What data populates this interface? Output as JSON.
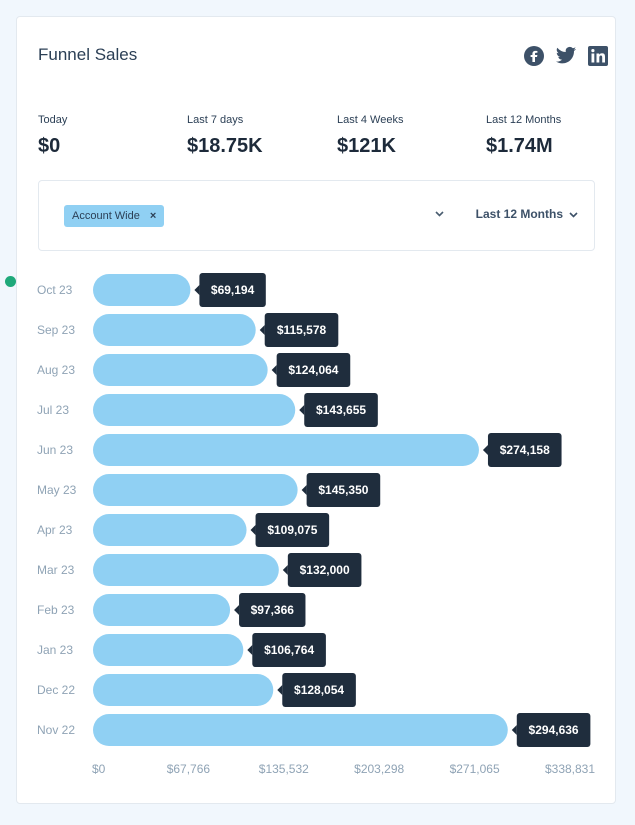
{
  "widget": {
    "title": "Funnel Sales",
    "social": [
      {
        "icon": "facebook-icon"
      },
      {
        "icon": "twitter-icon"
      },
      {
        "icon": "linkedin-icon"
      }
    ],
    "stats": [
      {
        "label": "Today",
        "value": "$0"
      },
      {
        "label": "Last 7 days",
        "value": "$18.75K"
      },
      {
        "label": "Last 4 Weeks",
        "value": "$121K"
      },
      {
        "label": "Last 12 Months",
        "value": "$1.74M"
      }
    ],
    "filter": {
      "chip_label": "Account Wide",
      "chip_remove": "×",
      "range_label": "Last 12 Months"
    }
  },
  "colors": {
    "bar": "#90d0f3",
    "tooltip": "#1f2d3d",
    "accent_dot": "#1fa97a"
  },
  "chart_data": {
    "type": "bar",
    "orientation": "horizontal",
    "categories": [
      "Oct 23",
      "Sep 23",
      "Aug 23",
      "Jul 23",
      "Jun 23",
      "May 23",
      "Apr 23",
      "Mar 23",
      "Feb 23",
      "Jan 23",
      "Dec 22",
      "Nov 22"
    ],
    "values": [
      69194,
      115578,
      124064,
      143655,
      274158,
      145350,
      109075,
      132000,
      97366,
      106764,
      128054,
      294636
    ],
    "value_labels": [
      "$69,194",
      "$115,578",
      "$124,064",
      "$143,655",
      "$274,158",
      "$145,350",
      "$109,075",
      "$132,000",
      "$97,366",
      "$106,764",
      "$128,054",
      "$294,636"
    ],
    "x_ticks": [
      "$0",
      "$67,766",
      "$135,532",
      "$203,298",
      "$271,065",
      "$338,831"
    ],
    "xlim": [
      0,
      338831
    ],
    "grid": false
  }
}
